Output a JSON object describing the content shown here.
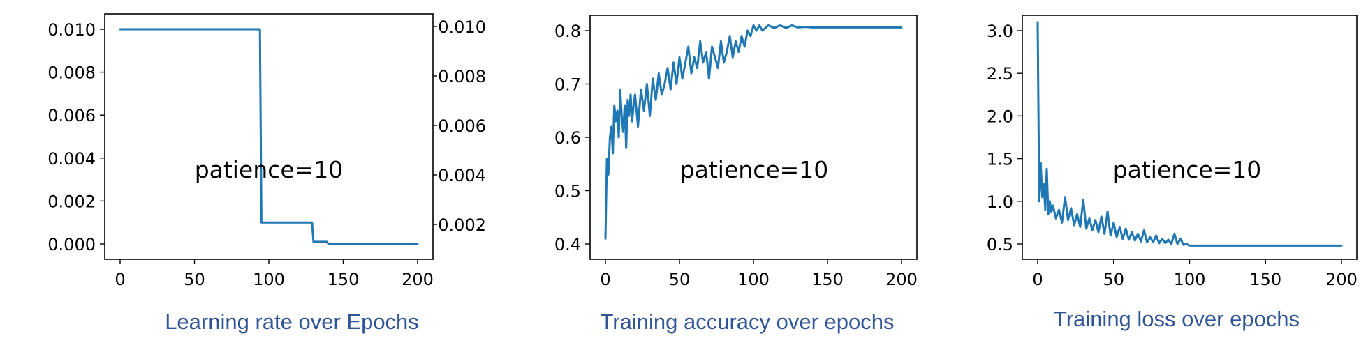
{
  "colors": {
    "line": "#1f77b4",
    "caption": "#2f5597",
    "frame": "#000000"
  },
  "chart_data": [
    {
      "type": "line",
      "caption": "Learning rate over Epochs",
      "annotation": "patience=10",
      "xlim": [
        0,
        200
      ],
      "ylim": [
        0,
        0.01
      ],
      "x_ticks": [
        "0",
        "50",
        "100",
        "150",
        "200"
      ],
      "y_ticks": [
        "0.000",
        "0.002",
        "0.004",
        "0.006",
        "0.008",
        "0.010"
      ],
      "y2_ticks": [
        "0.002",
        "0.004",
        "0.006",
        "0.008",
        "0.010"
      ],
      "grid": false,
      "series": [
        {
          "x": [
            0,
            94,
            95,
            129,
            130,
            139,
            140,
            200
          ],
          "y": [
            0.01,
            0.01,
            0.001,
            0.001,
            0.0001,
            0.0001,
            1e-05,
            1e-05
          ]
        }
      ]
    },
    {
      "type": "line",
      "caption": "Training accuracy over epochs",
      "annotation": "patience=10",
      "xlim": [
        0,
        200
      ],
      "ylim": [
        0.4,
        0.8
      ],
      "x_ticks": [
        "0",
        "50",
        "100",
        "150",
        "200"
      ],
      "y_ticks": [
        "0.4",
        "0.5",
        "0.6",
        "0.7",
        "0.8"
      ],
      "grid": false,
      "series": [
        {
          "x": [
            0,
            1,
            2,
            3,
            4,
            5,
            6,
            7,
            8,
            9,
            10,
            11,
            12,
            13,
            14,
            15,
            16,
            17,
            18,
            19,
            20,
            22,
            24,
            26,
            28,
            30,
            32,
            34,
            36,
            38,
            40,
            42,
            44,
            46,
            48,
            50,
            52,
            54,
            56,
            58,
            60,
            62,
            64,
            66,
            68,
            70,
            72,
            74,
            76,
            78,
            80,
            82,
            84,
            86,
            88,
            90,
            92,
            94,
            96,
            98,
            100,
            102,
            104,
            106,
            108,
            110,
            114,
            118,
            122,
            126,
            130,
            135,
            140,
            150,
            160,
            170,
            180,
            190,
            200
          ],
          "y": [
            0.41,
            0.56,
            0.53,
            0.6,
            0.62,
            0.57,
            0.66,
            0.63,
            0.65,
            0.6,
            0.69,
            0.64,
            0.61,
            0.66,
            0.58,
            0.67,
            0.64,
            0.68,
            0.63,
            0.66,
            0.68,
            0.62,
            0.69,
            0.65,
            0.7,
            0.64,
            0.71,
            0.67,
            0.72,
            0.68,
            0.7,
            0.73,
            0.69,
            0.74,
            0.7,
            0.75,
            0.71,
            0.74,
            0.77,
            0.72,
            0.75,
            0.73,
            0.78,
            0.74,
            0.76,
            0.71,
            0.77,
            0.75,
            0.73,
            0.78,
            0.74,
            0.76,
            0.79,
            0.75,
            0.78,
            0.76,
            0.79,
            0.77,
            0.8,
            0.79,
            0.81,
            0.8,
            0.81,
            0.8,
            0.805,
            0.81,
            0.805,
            0.81,
            0.805,
            0.81,
            0.806,
            0.807,
            0.806,
            0.806,
            0.806,
            0.806,
            0.806,
            0.806,
            0.806
          ]
        }
      ]
    },
    {
      "type": "line",
      "caption": "Training loss over epochs",
      "annotation": "patience=10",
      "xlim": [
        0,
        200
      ],
      "ylim": [
        0.5,
        3.0
      ],
      "x_ticks": [
        "0",
        "50",
        "100",
        "150",
        "200"
      ],
      "y_ticks": [
        "0.5",
        "1.0",
        "1.5",
        "2.0",
        "2.5",
        "3.0"
      ],
      "grid": false,
      "series": [
        {
          "x": [
            0,
            1,
            2,
            3,
            4,
            5,
            6,
            7,
            8,
            9,
            10,
            12,
            14,
            16,
            18,
            20,
            22,
            24,
            26,
            28,
            30,
            32,
            34,
            36,
            38,
            40,
            42,
            44,
            46,
            48,
            50,
            52,
            54,
            56,
            58,
            60,
            62,
            64,
            66,
            68,
            70,
            72,
            74,
            76,
            78,
            80,
            82,
            84,
            86,
            88,
            90,
            92,
            94,
            96,
            98,
            100,
            110,
            120,
            140,
            160,
            180,
            200
          ],
          "y": [
            3.1,
            1.0,
            1.45,
            1.05,
            1.2,
            0.9,
            1.38,
            0.85,
            1.0,
            0.88,
            0.95,
            0.8,
            0.9,
            0.75,
            1.05,
            0.78,
            0.92,
            0.72,
            0.85,
            0.7,
            1.02,
            0.68,
            0.8,
            0.66,
            0.78,
            0.64,
            0.82,
            0.62,
            0.88,
            0.6,
            0.75,
            0.58,
            0.7,
            0.56,
            0.68,
            0.55,
            0.64,
            0.54,
            0.62,
            0.53,
            0.66,
            0.52,
            0.58,
            0.52,
            0.6,
            0.51,
            0.56,
            0.51,
            0.55,
            0.5,
            0.62,
            0.5,
            0.56,
            0.49,
            0.5,
            0.48,
            0.48,
            0.48,
            0.48,
            0.48,
            0.48,
            0.48
          ]
        }
      ]
    }
  ]
}
